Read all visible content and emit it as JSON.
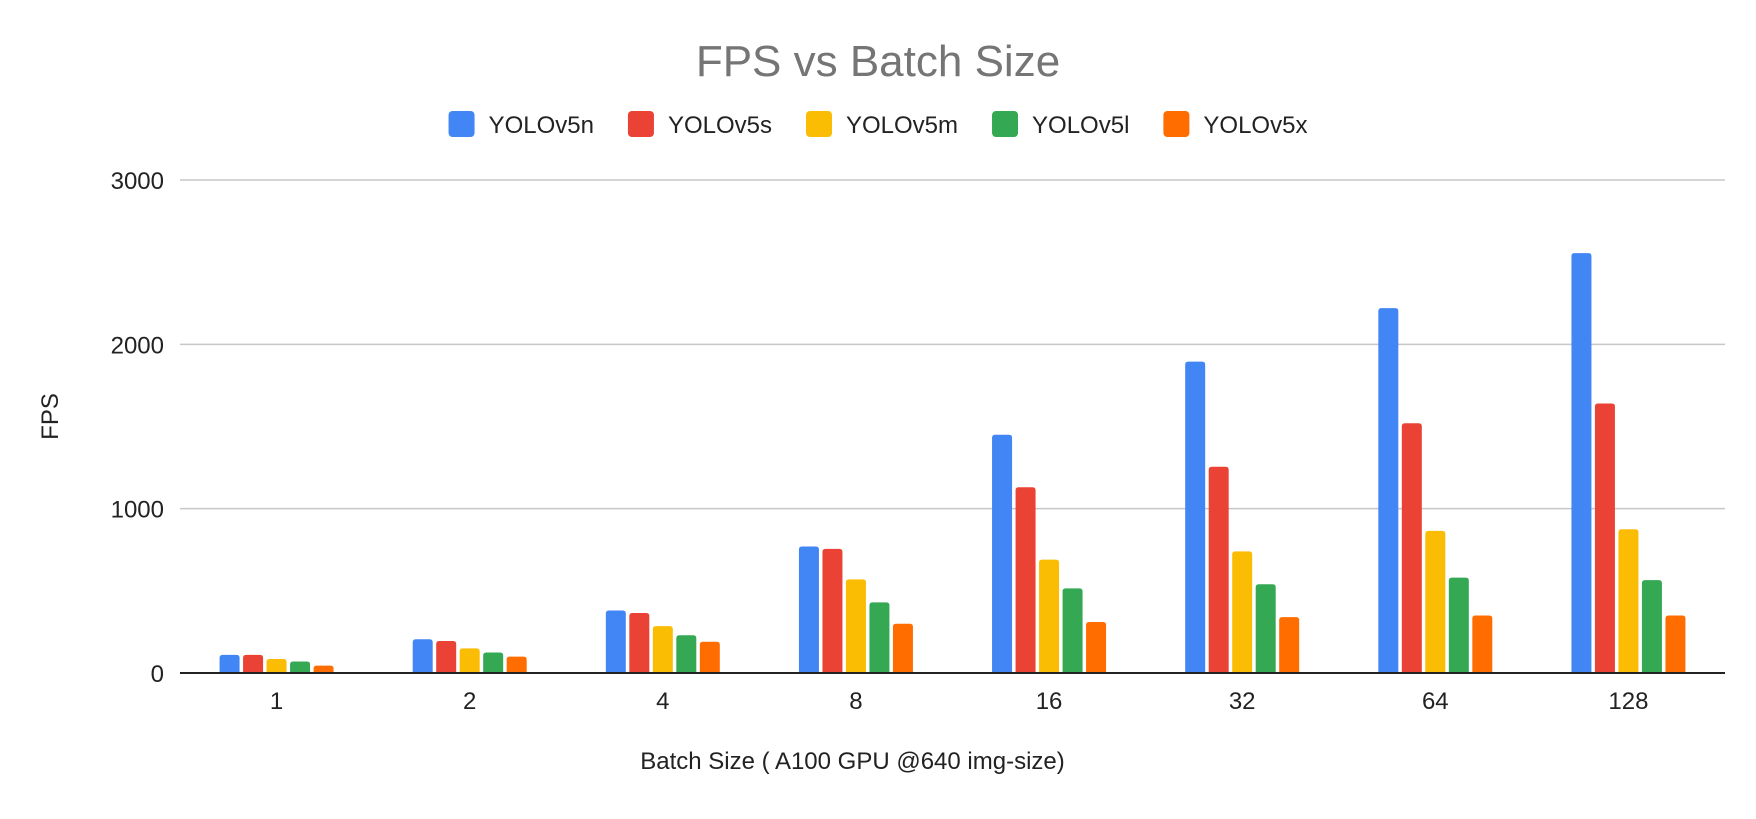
{
  "chart_data": {
    "type": "bar",
    "title": "FPS vs Batch Size",
    "xlabel": "Batch Size ( A100 GPU @640 img-size)",
    "ylabel": "FPS",
    "ylim": [
      0,
      3000
    ],
    "yticks": [
      "0",
      "1000",
      "2000",
      "3000"
    ],
    "grid": true,
    "legend_position": "top",
    "categories": [
      "1",
      "2",
      "4",
      "8",
      "16",
      "32",
      "64",
      "128"
    ],
    "series": [
      {
        "name": "YOLOv5n",
        "color": "#4285f4",
        "values": [
          110,
          205,
          380,
          770,
          1450,
          1895,
          2220,
          2555
        ]
      },
      {
        "name": "YOLOv5s",
        "color": "#ea4335",
        "values": [
          110,
          195,
          365,
          755,
          1130,
          1255,
          1520,
          1640
        ]
      },
      {
        "name": "YOLOv5m",
        "color": "#fbbc04",
        "values": [
          85,
          150,
          285,
          570,
          690,
          740,
          865,
          875
        ]
      },
      {
        "name": "YOLOv5l",
        "color": "#34a853",
        "values": [
          70,
          125,
          230,
          430,
          515,
          540,
          580,
          565
        ]
      },
      {
        "name": "YOLOv5x",
        "color": "#ff6d01",
        "values": [
          45,
          100,
          190,
          300,
          310,
          340,
          350,
          350
        ]
      }
    ]
  }
}
